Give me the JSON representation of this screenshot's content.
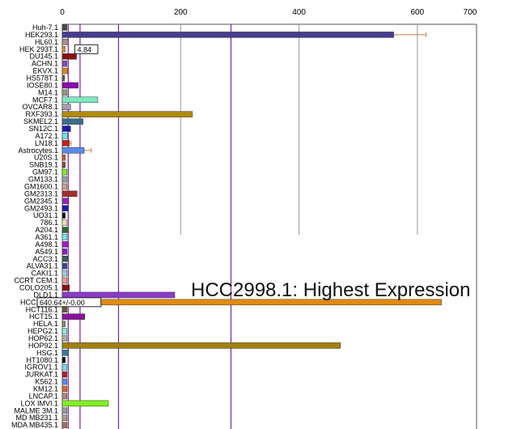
{
  "chart_data": {
    "type": "bar",
    "orientation": "horizontal",
    "xlim": [
      0,
      700
    ],
    "xticks": [
      0,
      200,
      400,
      600,
      700
    ],
    "grid": true,
    "reference_lines": [
      10,
      30,
      95,
      285
    ],
    "annotation": "HCC2998.1: Highest Expression",
    "callouts": [
      {
        "category": "HEK 293T.1",
        "text": "4.84"
      },
      {
        "category": "HCC2998.1",
        "text": "640.64+/-0.00"
      }
    ],
    "categories": [
      "Huh-7.1",
      "HEK293.1",
      "HL60.1",
      "HEK 293T.1",
      "DU145.1",
      "ACHN.1",
      "EKVX.1",
      "HS578T.1",
      "IOSE80.1",
      "M14.1",
      "MCF7.1",
      "OVCAR8.1",
      "RXF393.1",
      "SKMEL2.1",
      "SN12C.1",
      "A172.1",
      "LN18.1",
      "Astrocytes.1",
      "U20S.1",
      "SNB19.1",
      "GM97.1",
      "GM133.1",
      "GM1600.1",
      "GM2313.1",
      "GM2345.1",
      "GM2493.1",
      "UO31.1",
      "786.1",
      "A204.1",
      "A361.1",
      "A498.1",
      "A549.1",
      "ACC3.1",
      "ALVA31.1",
      "CAKI1.1",
      "CCRT CEM.1",
      "COLO205.1",
      "DLD1.1",
      "HCC2998.1",
      "HCT116.1",
      "HCT15.1",
      "HELA.1",
      "HEPG2.1",
      "HOP62.1",
      "HOP92.1",
      "HSG.1",
      "HT1080.1",
      "IGROV1.1",
      "JURKAT.1",
      "K562.1",
      "KM12.1",
      "LNCAP.1",
      "LOX IMVI.1",
      "MALME 3M.1",
      "MD MB231.1",
      "MDA MB435.1"
    ],
    "values": [
      8,
      560,
      10,
      4.84,
      24,
      8,
      9,
      4,
      27,
      8,
      60,
      14,
      220,
      35,
      14,
      9,
      12,
      37,
      5,
      5,
      8,
      8,
      8,
      25,
      11,
      10,
      5,
      8,
      10,
      8,
      10,
      8,
      10,
      8,
      8,
      8,
      12,
      190,
      640.64,
      8,
      38,
      5,
      8,
      8,
      470,
      10,
      5,
      8,
      8,
      8,
      8,
      8,
      78,
      8,
      8,
      8
    ],
    "errors": [
      0,
      55,
      0,
      0,
      0,
      0,
      0,
      0,
      0,
      0,
      0,
      0,
      0,
      0,
      0,
      0,
      3,
      12,
      0,
      0,
      0,
      0,
      0,
      0,
      0,
      0,
      0,
      0,
      0,
      0,
      0,
      0,
      0,
      0,
      0,
      0,
      0,
      0,
      0,
      0,
      0,
      0,
      0,
      0,
      0,
      0,
      0,
      0,
      0,
      0,
      0,
      0,
      0,
      0,
      0,
      0
    ],
    "colors": [
      "#4a4a4a",
      "#473e8f",
      "#b08a8a",
      "#e08a30",
      "#8b1010",
      "#7a4fb5",
      "#e0831c",
      "#5a5a5a",
      "#8b0ca8",
      "#9a9a7a",
      "#7fe8c0",
      "#a89ab0",
      "#b08a10",
      "#3a6e8a",
      "#1a1aa8",
      "#6ee0ee",
      "#c02020",
      "#5a8ae8",
      "#c86030",
      "#8b4a3a",
      "#7cf020",
      "#8aaaa0",
      "#d0a080",
      "#a03030",
      "#9a20c0",
      "#1a1aa8",
      "#111111",
      "#f0e0b0",
      "#2a6a2a",
      "#70e8e8",
      "#9a20c8",
      "#8a20c8",
      "#3a5a5a",
      "#3a4a8a",
      "#9ad0e0",
      "#e8a080",
      "#8b1010",
      "#8b3ac8",
      "#e08a10",
      "#6a5a3a",
      "#8b109a",
      "#8a8a6a",
      "#8ae8e0",
      "#b0b0a0",
      "#a08010",
      "#3a7a9a",
      "#111111",
      "#70e0f0",
      "#b02020",
      "#5a8ae8",
      "#d06a30",
      "#b08a70",
      "#80f020",
      "#9a9a9a",
      "#aaa080",
      "#a07060"
    ]
  }
}
